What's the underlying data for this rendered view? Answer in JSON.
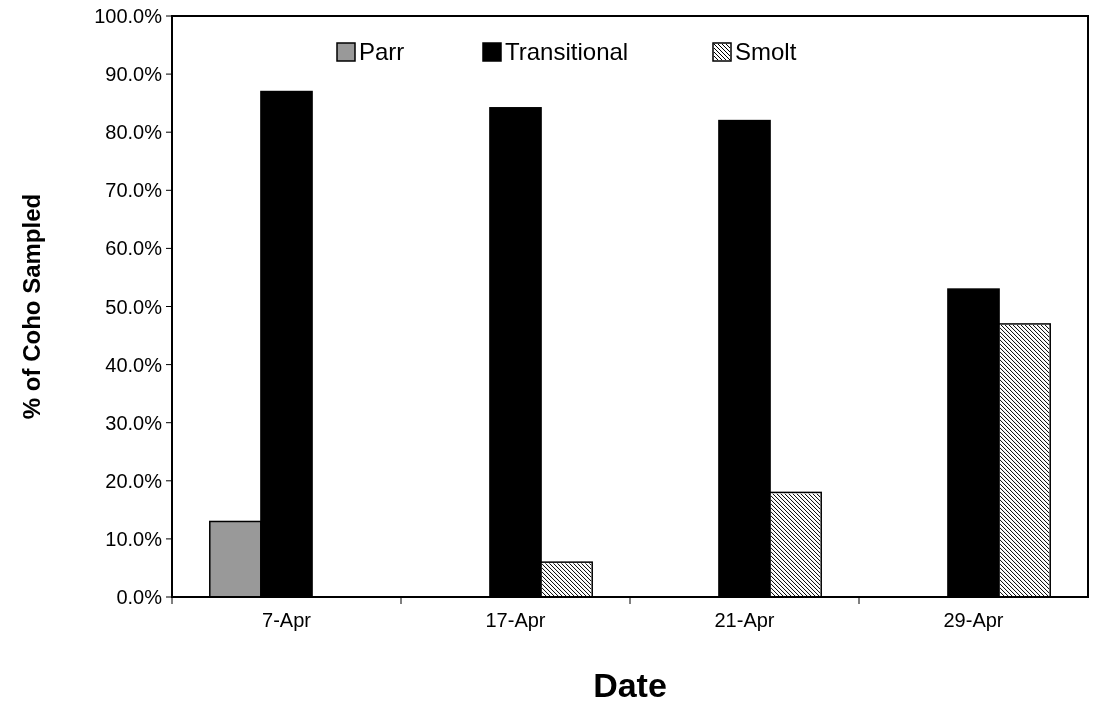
{
  "chart_data": {
    "type": "bar",
    "xlabel": "Date",
    "ylabel": "% of Coho Sampled",
    "categories": [
      "7-Apr",
      "17-Apr",
      "21-Apr",
      "29-Apr"
    ],
    "series": [
      {
        "name": "Parr",
        "color": "#999999",
        "values": [
          13,
          null,
          null,
          null
        ]
      },
      {
        "name": "Transitional",
        "color": "#000000",
        "values": [
          87,
          84.2,
          82,
          53
        ]
      },
      {
        "name": "Smolt",
        "color": "#ffffff",
        "values": [
          null,
          6,
          18,
          47
        ]
      }
    ],
    "ylim": [
      0,
      100
    ],
    "yticks": [
      {
        "value": 0,
        "label": "0.0%"
      },
      {
        "value": 10,
        "label": "10.0%"
      },
      {
        "value": 20,
        "label": "20.0%"
      },
      {
        "value": 30,
        "label": "30.0%"
      },
      {
        "value": 40,
        "label": "40.0%"
      },
      {
        "value": 50,
        "label": "50.0%"
      },
      {
        "value": 60,
        "label": "60.0%"
      },
      {
        "value": 70,
        "label": "70.0%"
      },
      {
        "value": 80,
        "label": "80.0%"
      },
      {
        "value": 90,
        "label": "90.0%"
      },
      {
        "value": 100,
        "label": "100.0%"
      }
    ],
    "legend": "top"
  }
}
